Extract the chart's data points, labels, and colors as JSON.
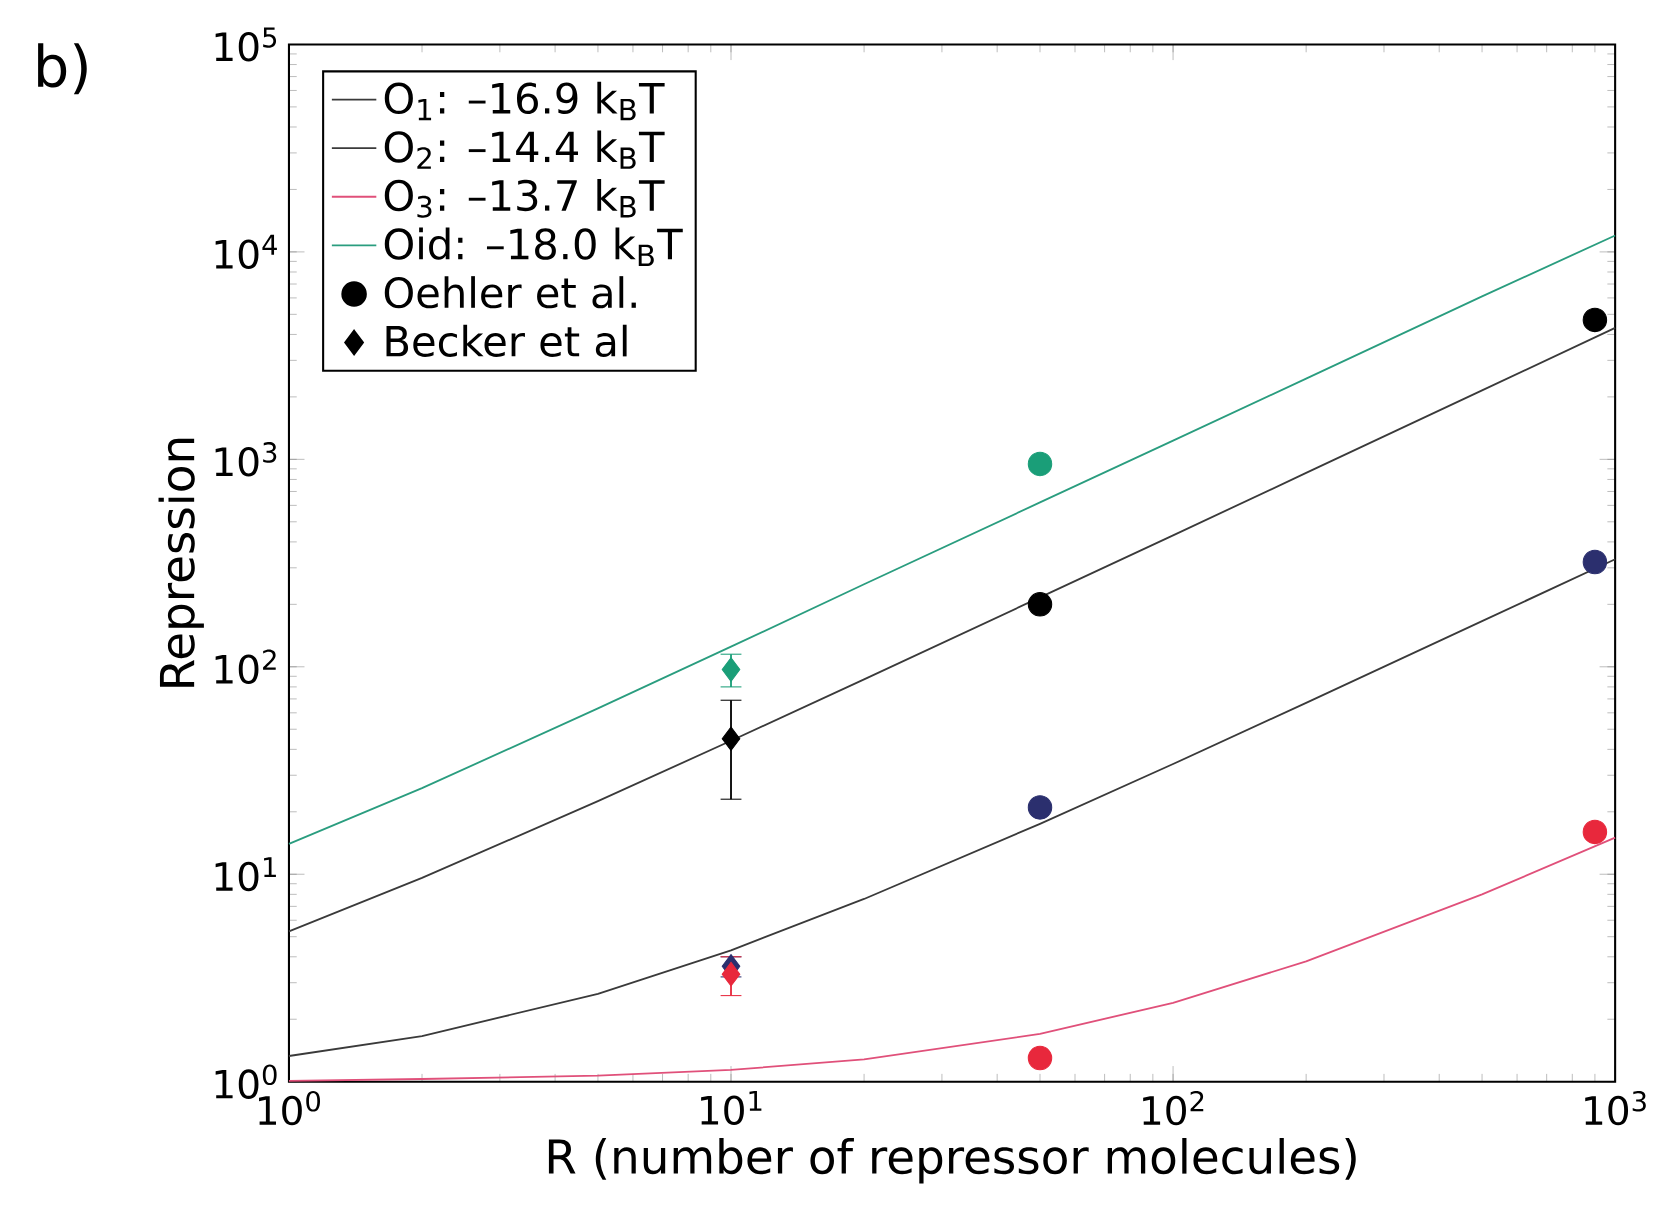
{
  "chart_data": {
    "type": "line",
    "xlabel": "R (number of repressor molecules)",
    "ylabel": "Repression",
    "annotations": [
      "b)"
    ],
    "log": "xy",
    "xlim": [
      1,
      1000
    ],
    "ylim": [
      1,
      100000
    ],
    "xticks": [
      {
        "value": 1,
        "label": "10$^{0}$"
      },
      {
        "value": 10,
        "label": "10$^{1}$"
      },
      {
        "value": 100,
        "label": "10$^{2}$"
      },
      {
        "value": 1000,
        "label": "10$^{3}$"
      }
    ],
    "yticks": [
      {
        "value": 1,
        "label": "10$^{0}$"
      },
      {
        "value": 10,
        "label": "10$^{1}$"
      },
      {
        "value": 100,
        "label": "10$^{2}$"
      },
      {
        "value": 1000,
        "label": "10$^{3}$"
      },
      {
        "value": 10000,
        "label": "10$^{4}$"
      },
      {
        "value": 100000,
        "label": "10$^{5}$"
      }
    ],
    "legend": "top left",
    "line_style": "solid",
    "series": [
      {
        "name": "O$_{1}$: –16.9 k$_{B}$T",
        "type": "line",
        "color": "#3a3a3a",
        "x": [
          1,
          2,
          5,
          10,
          20,
          50,
          100,
          200,
          500,
          1000
        ],
        "values": [
          5.3,
          9.6,
          22.5,
          44,
          87,
          216,
          430,
          860,
          2150,
          4300
        ]
      },
      {
        "name": "O$_{2}$: –14.4 k$_{B}$T",
        "type": "line",
        "color": "#3a3a3a",
        "x": [
          1,
          2,
          5,
          10,
          20,
          50,
          100,
          200,
          500,
          1000
        ],
        "values": [
          1.33,
          1.66,
          2.65,
          4.3,
          7.6,
          17.5,
          34,
          67,
          166,
          330
        ]
      },
      {
        "name": "O$_{3}$: –13.7 k$_{B}$T",
        "type": "line",
        "color": "#e0507a",
        "x": [
          1,
          2,
          5,
          10,
          20,
          50,
          100,
          200,
          500,
          1000
        ],
        "values": [
          1.01,
          1.03,
          1.07,
          1.14,
          1.28,
          1.7,
          2.4,
          3.8,
          8,
          15
        ]
      },
      {
        "name": "Oid: –18.0 k$_{B}$T",
        "type": "line",
        "color": "#2a9d7f",
        "x": [
          1,
          2,
          5,
          10,
          20,
          50,
          100,
          200,
          500,
          1000
        ],
        "values": [
          14,
          26,
          63,
          125,
          250,
          620,
          1230,
          2450,
          6100,
          12000
        ]
      },
      {
        "name": "Oehler et al.",
        "type": "scatter",
        "marker": "circle",
        "color": "#000000",
        "colors": [
          "#1a9e78",
          "#000000",
          "#2b2f6e",
          "#e8283c",
          "#000000",
          "#2b2f6e",
          "#e8283c"
        ],
        "x": [
          50,
          50,
          50,
          50,
          900,
          900,
          900
        ],
        "values": [
          950,
          200,
          21,
          1.3,
          4700,
          320,
          16
        ]
      },
      {
        "name": "Becker et al",
        "type": "scatter",
        "marker": "diamond",
        "color": "#000000",
        "colors": [
          "#1a9e78",
          "#000000",
          "#2b2f6e",
          "#e8283c"
        ],
        "x": [
          10,
          10,
          10,
          10
        ],
        "values": [
          97,
          45,
          3.6,
          3.3
        ],
        "errors": [
          [
            80,
            115
          ],
          [
            23,
            69
          ],
          [
            3.2,
            4.0
          ],
          [
            2.6,
            4.0
          ]
        ]
      }
    ]
  }
}
